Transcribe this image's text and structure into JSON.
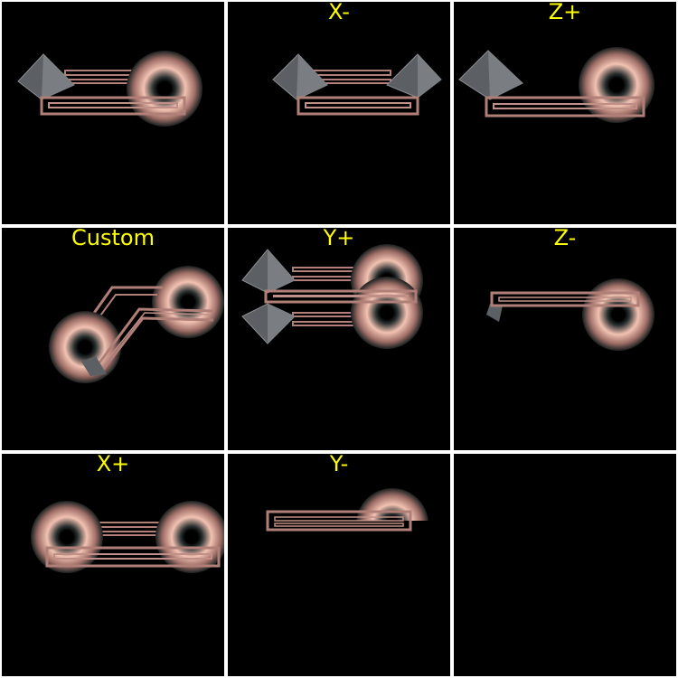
{
  "label_color": "#ffff00",
  "background": "#000000",
  "separator": "#ffffff",
  "panels": [
    {
      "name": "top-left",
      "label": "",
      "kind": "view"
    },
    {
      "name": "x-minus",
      "label": "X-",
      "kind": "view"
    },
    {
      "name": "z-plus",
      "label": "Z+",
      "kind": "view"
    },
    {
      "name": "custom",
      "label": "Custom",
      "kind": "view"
    },
    {
      "name": "y-plus",
      "label": "Y+",
      "kind": "view"
    },
    {
      "name": "z-minus",
      "label": "Z-",
      "kind": "view"
    },
    {
      "name": "x-plus",
      "label": "X+",
      "kind": "view"
    },
    {
      "name": "y-minus",
      "label": "Y-",
      "kind": "view"
    },
    {
      "name": "empty",
      "label": "",
      "kind": "empty"
    }
  ],
  "object_colors": {
    "frame": "#b08078",
    "torus_light": "#f2c2b2",
    "torus_dark": "#2a3030",
    "pyramid": "#6a6e72"
  }
}
